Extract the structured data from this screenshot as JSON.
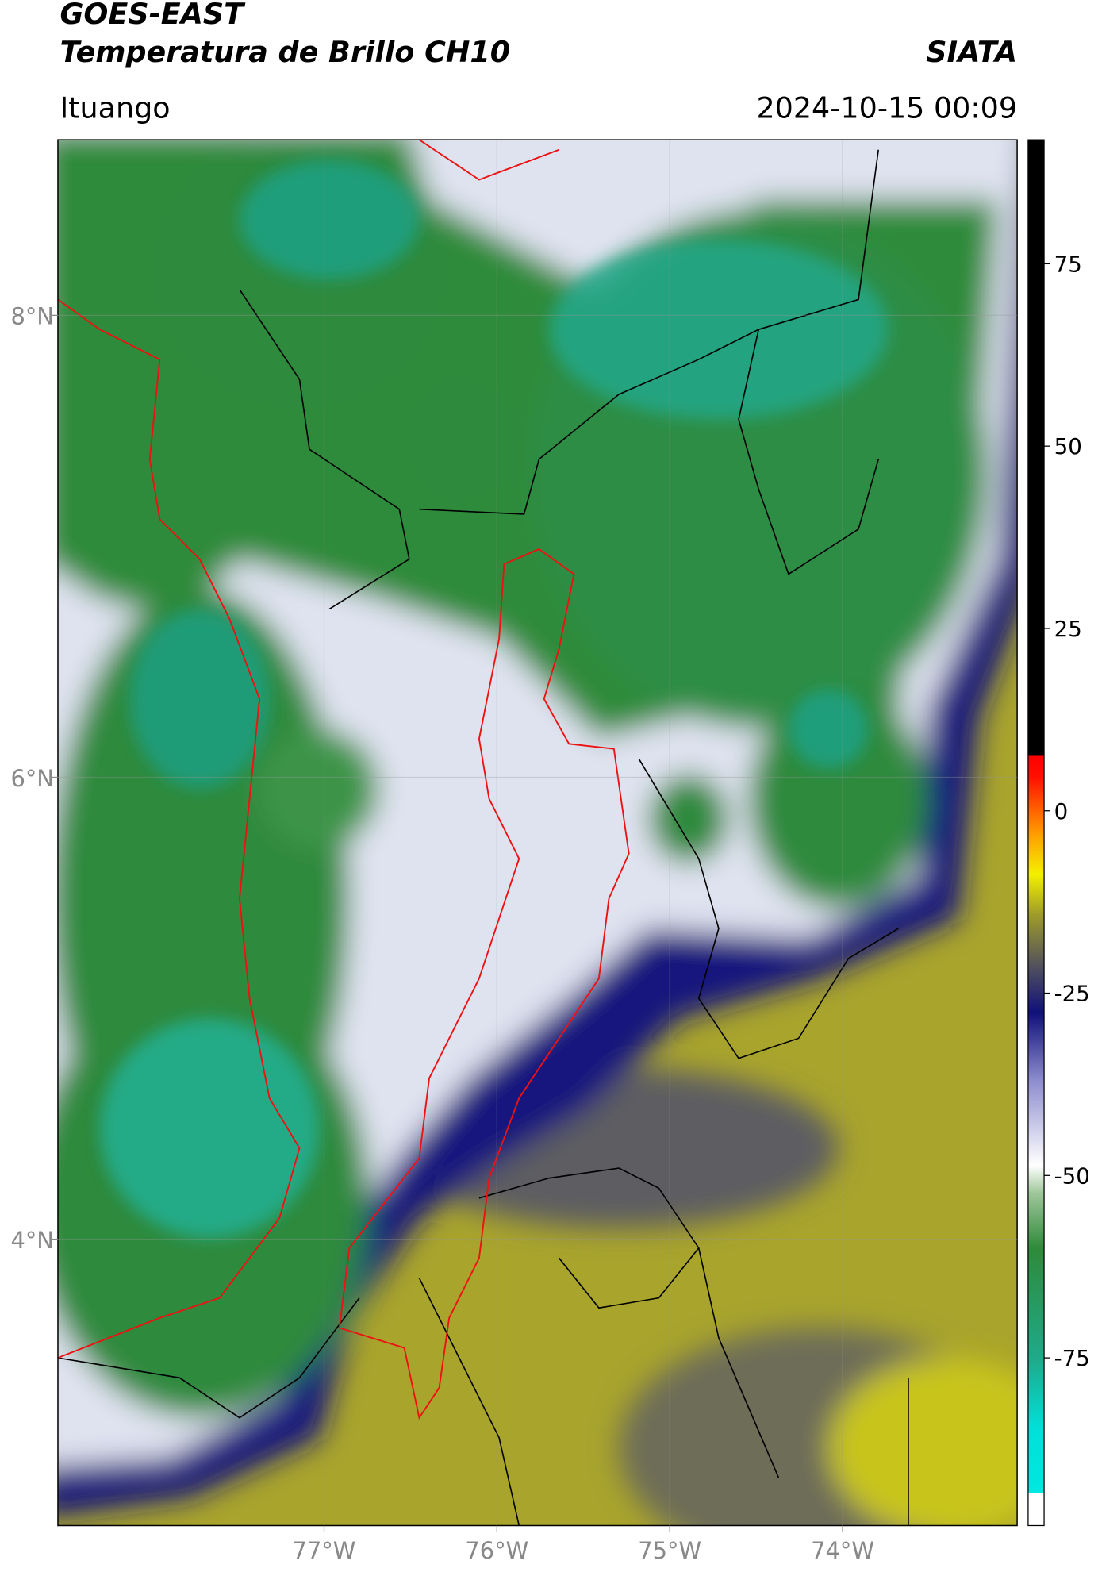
{
  "header": {
    "satellite": "GOES-EAST",
    "product": "Temperatura de Brillo CH10",
    "institution": "SIATA",
    "location": "Ituango",
    "timestamp": "2024-10-15 00:09"
  },
  "map": {
    "xlim": [
      -78.54,
      -72.99
    ],
    "ylim": [
      2.76,
      8.76
    ],
    "xticks": [
      {
        "value": -77,
        "label": "77°W"
      },
      {
        "value": -76,
        "label": "76°W"
      },
      {
        "value": -75,
        "label": "75°W"
      },
      {
        "value": -74,
        "label": "74°W"
      }
    ],
    "yticks": [
      {
        "value": 8,
        "label": "8°N"
      },
      {
        "value": 6,
        "label": "6°N"
      },
      {
        "value": 4,
        "label": "4°N"
      }
    ],
    "grid": true
  },
  "colorbar": {
    "lim": [
      -98,
      92
    ],
    "ticks": [
      75,
      50,
      25,
      0,
      -25,
      -50,
      -75
    ]
  }
}
